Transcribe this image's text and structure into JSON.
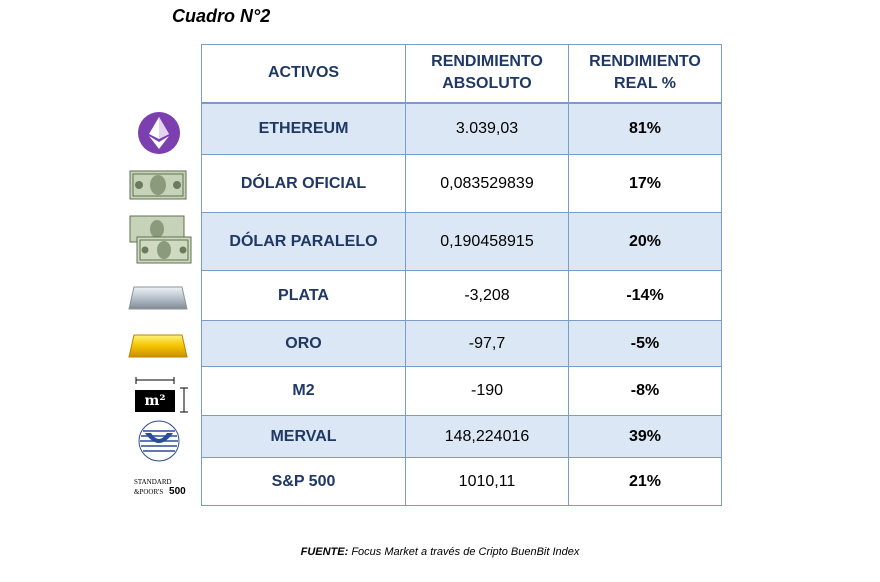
{
  "caption": "Cuadro N°2",
  "table": {
    "headers": {
      "assets": "ACTIVOS",
      "abs_line1": "RENDIMIENTO",
      "abs_line2": "ABSOLUTO",
      "real_line1": "RENDIMIENTO",
      "real_line2": "REAL %"
    },
    "rows": [
      {
        "asset": "ETHEREUM",
        "absolute": "3.039,03",
        "real": "81%",
        "icon": "ethereum-icon"
      },
      {
        "asset": "DÓLAR OFICIAL",
        "absolute": "0,083529839",
        "real": "17%",
        "icon": "dollar-bill-icon"
      },
      {
        "asset": "DÓLAR PARALELO",
        "absolute": "0,190458915",
        "real": "20%",
        "icon": "dollar-bills-stack-icon"
      },
      {
        "asset": "PLATA",
        "absolute": "-3,208",
        "real": "-14%",
        "icon": "silver-bar-icon"
      },
      {
        "asset": "ORO",
        "absolute": "-97,7",
        "real": "-5%",
        "icon": "gold-bar-icon"
      },
      {
        "asset": "M2",
        "absolute": "-190",
        "real": "-8%",
        "icon": "square-meter-icon"
      },
      {
        "asset": "MERVAL",
        "absolute": "148,224016",
        "real": "39%",
        "icon": "merval-logo-icon"
      },
      {
        "asset": "S&P 500",
        "absolute": "1010,11",
        "real": "21%",
        "icon": "sp500-logo-icon"
      }
    ]
  },
  "icon_text": {
    "m2": "m²",
    "sp_line1": "STANDARD",
    "sp_line2": "&POOR'S",
    "sp_num": "500"
  },
  "footer": {
    "label": "FUENTE:",
    "text": " Focus Market a través de Cripto BuenBit Index"
  },
  "colors": {
    "header_text": "#1f3864",
    "row_shade": "#dbe7f4",
    "border": "#7b9cc6"
  }
}
